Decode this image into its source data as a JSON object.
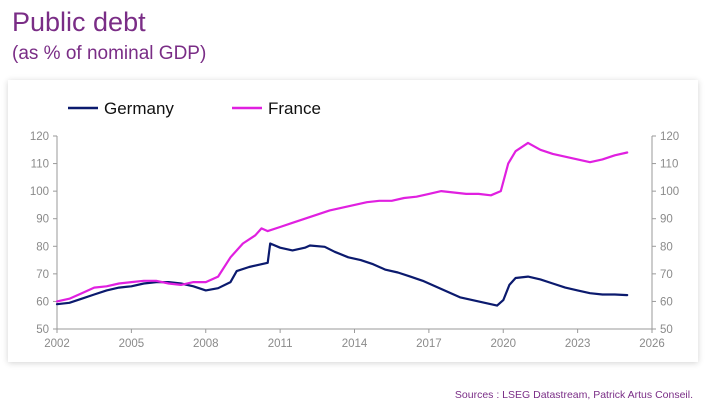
{
  "header": {
    "title": "Public debt",
    "subtitle": "(as % of nominal GDP)"
  },
  "footer": {
    "sources": "Sources : LSEG Datastream, Patrick Artus Conseil."
  },
  "chart_data": {
    "type": "line",
    "legend_placement": "top-left",
    "grid": false,
    "xlim": [
      2002,
      2026
    ],
    "ylim": [
      50,
      120
    ],
    "x_ticks": [
      2002,
      2005,
      2008,
      2011,
      2014,
      2017,
      2020,
      2023,
      2026
    ],
    "x_tick_labels": [
      "2002",
      "2005",
      "2008",
      "2011",
      "2014",
      "2017",
      "2020",
      "2023",
      "2026"
    ],
    "y_ticks": [
      50,
      60,
      70,
      80,
      90,
      100,
      110,
      120
    ],
    "y_tick_labels": [
      "50",
      "60",
      "70",
      "80",
      "90",
      "100",
      "110",
      "120"
    ],
    "right_axis_mirrors_left": true,
    "series": [
      {
        "name": "Germany",
        "color": "#0b1a6e",
        "points": [
          [
            2002.0,
            59.0
          ],
          [
            2002.5,
            59.5
          ],
          [
            2003.0,
            61.0
          ],
          [
            2003.5,
            62.5
          ],
          [
            2004.0,
            64.0
          ],
          [
            2004.5,
            65.0
          ],
          [
            2005.0,
            65.5
          ],
          [
            2005.5,
            66.5
          ],
          [
            2006.0,
            67.0
          ],
          [
            2006.5,
            67.0
          ],
          [
            2007.0,
            66.5
          ],
          [
            2007.5,
            65.5
          ],
          [
            2008.0,
            64.0
          ],
          [
            2008.5,
            64.8
          ],
          [
            2009.0,
            67.0
          ],
          [
            2009.25,
            71.0
          ],
          [
            2009.75,
            72.5
          ],
          [
            2010.25,
            73.5
          ],
          [
            2010.5,
            74.0
          ],
          [
            2010.6,
            81.0
          ],
          [
            2011.0,
            79.5
          ],
          [
            2011.5,
            78.5
          ],
          [
            2012.0,
            79.5
          ],
          [
            2012.2,
            80.3
          ],
          [
            2012.8,
            79.8
          ],
          [
            2013.2,
            78.0
          ],
          [
            2013.75,
            76.0
          ],
          [
            2014.25,
            75.0
          ],
          [
            2014.75,
            73.5
          ],
          [
            2015.25,
            71.5
          ],
          [
            2015.75,
            70.5
          ],
          [
            2016.25,
            69.0
          ],
          [
            2016.75,
            67.5
          ],
          [
            2017.25,
            65.5
          ],
          [
            2017.75,
            63.5
          ],
          [
            2018.25,
            61.5
          ],
          [
            2018.75,
            60.5
          ],
          [
            2019.25,
            59.5
          ],
          [
            2019.75,
            58.5
          ],
          [
            2020.0,
            60.5
          ],
          [
            2020.25,
            66.0
          ],
          [
            2020.5,
            68.5
          ],
          [
            2021.0,
            69.0
          ],
          [
            2021.5,
            68.0
          ],
          [
            2022.0,
            66.5
          ],
          [
            2022.5,
            65.0
          ],
          [
            2023.0,
            64.0
          ],
          [
            2023.5,
            63.0
          ],
          [
            2024.0,
            62.5
          ],
          [
            2024.5,
            62.5
          ],
          [
            2025.0,
            62.3
          ]
        ]
      },
      {
        "name": "France",
        "color": "#e020e0",
        "points": [
          [
            2002.0,
            60.0
          ],
          [
            2002.5,
            61.0
          ],
          [
            2003.0,
            63.0
          ],
          [
            2003.5,
            65.0
          ],
          [
            2004.0,
            65.5
          ],
          [
            2004.5,
            66.5
          ],
          [
            2005.0,
            67.0
          ],
          [
            2005.5,
            67.5
          ],
          [
            2006.0,
            67.5
          ],
          [
            2006.5,
            66.5
          ],
          [
            2007.0,
            66.0
          ],
          [
            2007.5,
            67.0
          ],
          [
            2008.0,
            67.0
          ],
          [
            2008.5,
            69.0
          ],
          [
            2009.0,
            76.0
          ],
          [
            2009.5,
            81.0
          ],
          [
            2010.0,
            84.0
          ],
          [
            2010.25,
            86.5
          ],
          [
            2010.5,
            85.5
          ],
          [
            2011.0,
            87.0
          ],
          [
            2011.5,
            88.5
          ],
          [
            2012.0,
            90.0
          ],
          [
            2012.5,
            91.5
          ],
          [
            2013.0,
            93.0
          ],
          [
            2013.5,
            94.0
          ],
          [
            2014.0,
            95.0
          ],
          [
            2014.5,
            96.0
          ],
          [
            2015.0,
            96.5
          ],
          [
            2015.5,
            96.5
          ],
          [
            2016.0,
            97.5
          ],
          [
            2016.5,
            98.0
          ],
          [
            2017.0,
            99.0
          ],
          [
            2017.5,
            100.0
          ],
          [
            2018.0,
            99.5
          ],
          [
            2018.5,
            99.0
          ],
          [
            2019.0,
            99.0
          ],
          [
            2019.5,
            98.5
          ],
          [
            2019.9,
            100.0
          ],
          [
            2020.2,
            110.0
          ],
          [
            2020.5,
            114.5
          ],
          [
            2021.0,
            117.5
          ],
          [
            2021.5,
            115.0
          ],
          [
            2022.0,
            113.5
          ],
          [
            2022.5,
            112.5
          ],
          [
            2023.0,
            111.5
          ],
          [
            2023.5,
            110.5
          ],
          [
            2024.0,
            111.5
          ],
          [
            2024.5,
            113.0
          ],
          [
            2025.0,
            114.0
          ]
        ]
      }
    ]
  }
}
